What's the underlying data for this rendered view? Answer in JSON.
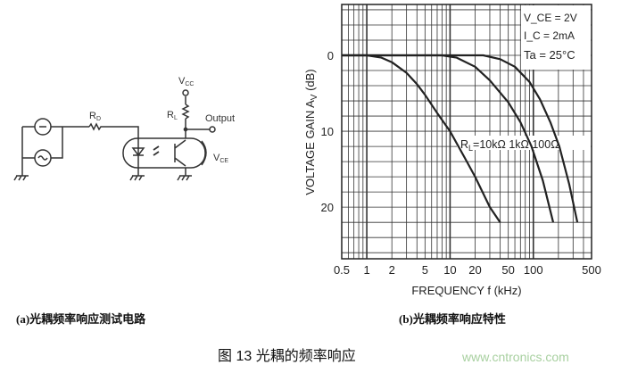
{
  "circuit": {
    "labels": {
      "rd": "R",
      "rd_sub": "D",
      "rl": "R",
      "rl_sub": "L",
      "vcc": "V",
      "vcc_sub": "CC",
      "output": "Output",
      "vce": "V",
      "vce_sub": "CE"
    }
  },
  "captions": {
    "a": "(a)光耦频率响应测试电路",
    "b": "(b)光耦频率响应特性",
    "figure": "图  13  光耦的频率响应",
    "watermark": "www.cntronics.com"
  },
  "chart_data": {
    "type": "line",
    "xlabel": "FREQUENCY f (kHz)",
    "ylabel": "VOLTAGE GAIN A",
    "ylabel_sub": "V",
    "ylabel_unit": " (dB)",
    "x_scale": "log",
    "xlim": [
      0.5,
      500
    ],
    "ylim": [
      -6.7,
      26.8
    ],
    "y_inverted": true,
    "grid": true,
    "x_ticks": [
      0.5,
      1,
      2,
      5,
      10,
      20,
      50,
      100,
      500
    ],
    "x_tick_labels": [
      "0.5",
      "1",
      "2",
      "5",
      "10",
      "20",
      "50",
      "100",
      "500"
    ],
    "y_ticks": [
      0,
      10,
      20
    ],
    "y_tick_labels": [
      "0",
      "10",
      "20"
    ],
    "conditions": [
      "V_CE = 2V",
      "I_C = 2mA",
      "Ta = 25°C"
    ],
    "conditions_parts": [
      {
        "main": "V",
        "sub": "CE",
        "rest": " = 2V"
      },
      {
        "main": "I",
        "sub": "C",
        "rest": " = 2mA"
      },
      {
        "main": "Ta = 25°C",
        "sub": "",
        "rest": ""
      }
    ],
    "series_label": {
      "prefix": "R",
      "sub": "L",
      "text": "=10kΩ 1kΩ 100Ω"
    },
    "series": [
      {
        "name": "10kΩ",
        "x": [
          0.5,
          1,
          1.5,
          2,
          3,
          4,
          5,
          7,
          10,
          15,
          20,
          30,
          40
        ],
        "y": [
          0,
          0,
          0.3,
          0.9,
          2.3,
          3.8,
          5.2,
          7.6,
          10,
          13.5,
          16,
          20,
          22
        ]
      },
      {
        "name": "1kΩ",
        "x": [
          0.5,
          8,
          12,
          20,
          30,
          50,
          70,
          95,
          130,
          173
        ],
        "y": [
          0,
          0,
          0.3,
          1.5,
          3.3,
          6.2,
          8.8,
          12,
          16.5,
          22
        ]
      },
      {
        "name": "100Ω",
        "x": [
          0.5,
          25,
          40,
          60,
          90,
          120,
          160,
          205,
          270,
          338
        ],
        "y": [
          0,
          0,
          0.5,
          1.5,
          3.5,
          5.8,
          8.8,
          12,
          17,
          22
        ]
      }
    ]
  }
}
